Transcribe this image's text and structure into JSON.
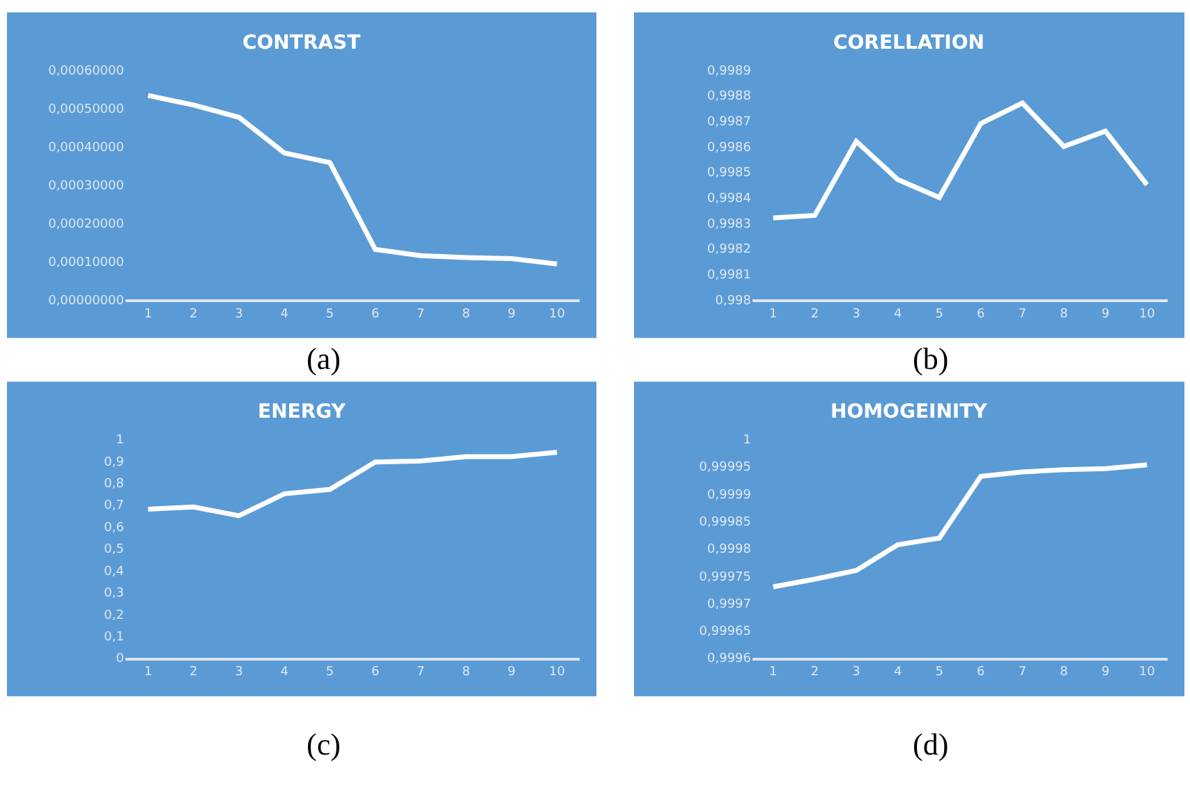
{
  "chart_data": [
    {
      "type": "line",
      "title": "CONTRAST",
      "annotations": [
        "(a)"
      ],
      "categories": [
        "1",
        "2",
        "3",
        "4",
        "5",
        "6",
        "7",
        "8",
        "9",
        "10"
      ],
      "series": [
        {
          "color": "#ffffff",
          "values": [
            0.000533,
            0.000508,
            0.000476,
            0.000383,
            0.000358,
            0.000131,
            0.000115,
            0.00011,
            0.000107,
            9.3e-05
          ]
        }
      ],
      "ylim": [
        0,
        0.0006
      ],
      "yticks": [
        {
          "value": 0,
          "label": "0,00000000"
        },
        {
          "value": 0.0001,
          "label": "0,00010000"
        },
        {
          "value": 0.0002,
          "label": "0,00020000"
        },
        {
          "value": 0.0003,
          "label": "0,00030000"
        },
        {
          "value": 0.0004,
          "label": "0,00040000"
        },
        {
          "value": 0.0005,
          "label": "0,00050000"
        },
        {
          "value": 0.0006,
          "label": "0,00060000"
        }
      ]
    },
    {
      "type": "line",
      "title": "CORELLATION",
      "annotations": [
        "(b)"
      ],
      "categories": [
        "1",
        "2",
        "3",
        "4",
        "5",
        "6",
        "7",
        "8",
        "9",
        "10"
      ],
      "series": [
        {
          "color": "#ffffff",
          "values": [
            0.99832,
            0.99833,
            0.99862,
            0.99847,
            0.9984,
            0.99869,
            0.99877,
            0.9986,
            0.99866,
            0.99845
          ]
        }
      ],
      "ylim": [
        0.998,
        0.9989
      ],
      "yticks": [
        {
          "value": 0.998,
          "label": "0,998"
        },
        {
          "value": 0.9981,
          "label": "0,9981"
        },
        {
          "value": 0.9982,
          "label": "0,9982"
        },
        {
          "value": 0.9983,
          "label": "0,9983"
        },
        {
          "value": 0.9984,
          "label": "0,9984"
        },
        {
          "value": 0.9985,
          "label": "0,9985"
        },
        {
          "value": 0.9986,
          "label": "0,9986"
        },
        {
          "value": 0.9987,
          "label": "0,9987"
        },
        {
          "value": 0.9988,
          "label": "0,9988"
        },
        {
          "value": 0.9989,
          "label": "0,9989"
        }
      ]
    },
    {
      "type": "line",
      "title": "ENERGY",
      "annotations": [
        "(c)"
      ],
      "categories": [
        "1",
        "2",
        "3",
        "4",
        "5",
        "6",
        "7",
        "8",
        "9",
        "10"
      ],
      "series": [
        {
          "color": "#ffffff",
          "values": [
            0.68,
            0.69,
            0.65,
            0.75,
            0.77,
            0.895,
            0.9,
            0.92,
            0.92,
            0.94
          ]
        }
      ],
      "ylim": [
        0,
        1
      ],
      "yticks": [
        0,
        {
          "value": 0.1,
          "label": "0,1"
        },
        {
          "value": 0.2,
          "label": "0,2"
        },
        {
          "value": 0.3,
          "label": "0,3"
        },
        {
          "value": 0.4,
          "label": "0,4"
        },
        {
          "value": 0.5,
          "label": "0,5"
        },
        {
          "value": 0.6,
          "label": "0,6"
        },
        {
          "value": 0.7,
          "label": "0,7"
        },
        {
          "value": 0.8,
          "label": "0,8"
        },
        {
          "value": 0.9,
          "label": "0,9"
        },
        1
      ]
    },
    {
      "type": "line",
      "title": "HOMOGEINITY",
      "annotations": [
        "(d)"
      ],
      "categories": [
        "1",
        "2",
        "3",
        "4",
        "5",
        "6",
        "7",
        "8",
        "9",
        "10"
      ],
      "series": [
        {
          "color": "#ffffff",
          "values": [
            0.99973,
            0.999744,
            0.99976,
            0.999807,
            0.999819,
            0.999932,
            0.99994,
            0.999944,
            0.999946,
            0.999953
          ]
        }
      ],
      "ylim": [
        0.9996,
        1
      ],
      "yticks": [
        {
          "value": 0.9996,
          "label": "0,9996"
        },
        {
          "value": 0.99965,
          "label": "0,99965"
        },
        {
          "value": 0.9997,
          "label": "0,9997"
        },
        {
          "value": 0.99975,
          "label": "0,99975"
        },
        {
          "value": 0.9998,
          "label": "0,9998"
        },
        {
          "value": 0.99985,
          "label": "0,99985"
        },
        {
          "value": 0.9999,
          "label": "0,9999"
        },
        {
          "value": 0.99995,
          "label": "0,99995"
        },
        1
      ]
    }
  ]
}
